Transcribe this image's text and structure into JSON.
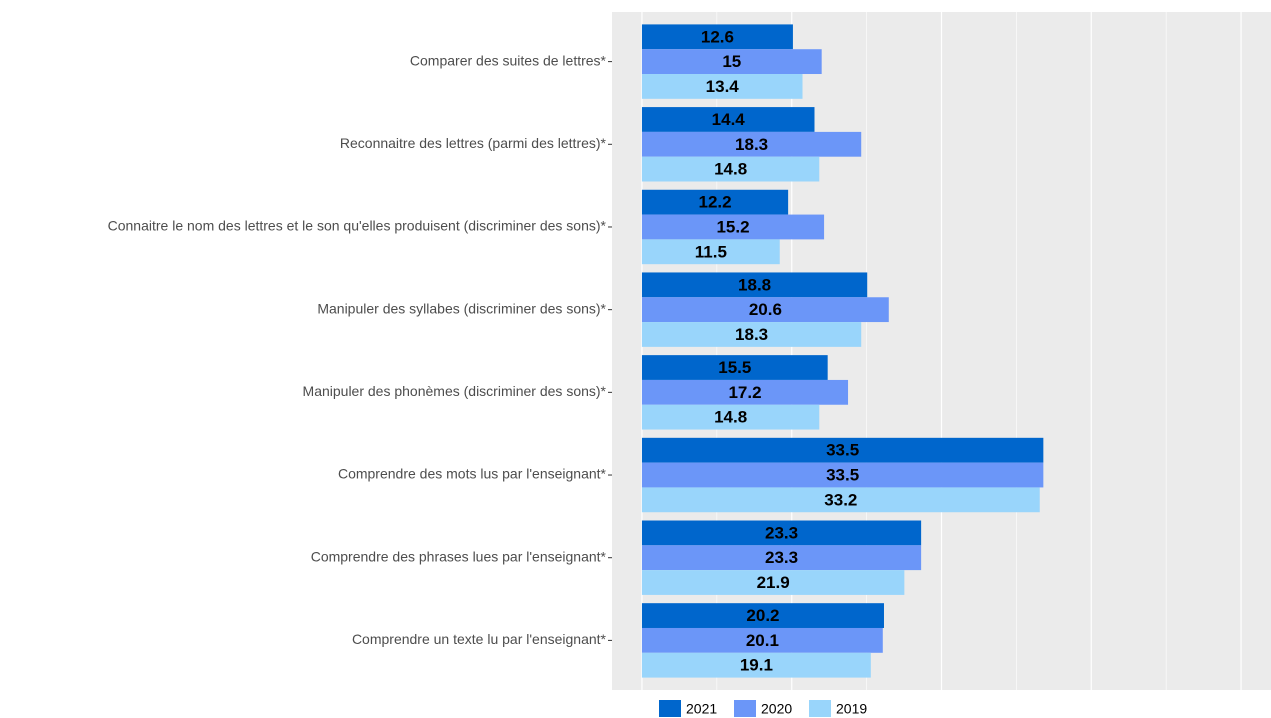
{
  "chart_data": {
    "type": "bar",
    "orientation": "horizontal",
    "categories": [
      "Comparer des suites de lettres*",
      "Reconnaitre des lettres (parmi des lettres)*",
      "Connaitre le nom des lettres et le son qu'elles produisent (discriminer des sons)*",
      "Manipuler des syllabes (discriminer des sons)*",
      "Manipuler des phonèmes (discriminer des sons)*",
      "Comprendre des mots lus par l'enseignant*",
      "Comprendre des phrases lues par l'enseignant*",
      "Comprendre un texte lu par l'enseignant*"
    ],
    "series": [
      {
        "name": "2021",
        "color": "#0066cc",
        "values": [
          12.6,
          14.4,
          12.2,
          18.8,
          15.5,
          33.5,
          23.3,
          20.2
        ]
      },
      {
        "name": "2020",
        "color": "#6b96f8",
        "values": [
          15,
          18.3,
          15.2,
          20.6,
          17.2,
          33.5,
          23.3,
          20.1
        ]
      },
      {
        "name": "2019",
        "color": "#99d5fb",
        "values": [
          13.4,
          14.8,
          11.5,
          18.3,
          14.8,
          33.2,
          21.9,
          19.1
        ]
      }
    ],
    "xlim": [
      -2.5,
      52.5
    ],
    "xticks": [
      0,
      12.5,
      25,
      37.5,
      50
    ],
    "minor_xticks": [
      6.25,
      18.75,
      31.25,
      43.75
    ],
    "grid": true,
    "legend": "bottom"
  }
}
